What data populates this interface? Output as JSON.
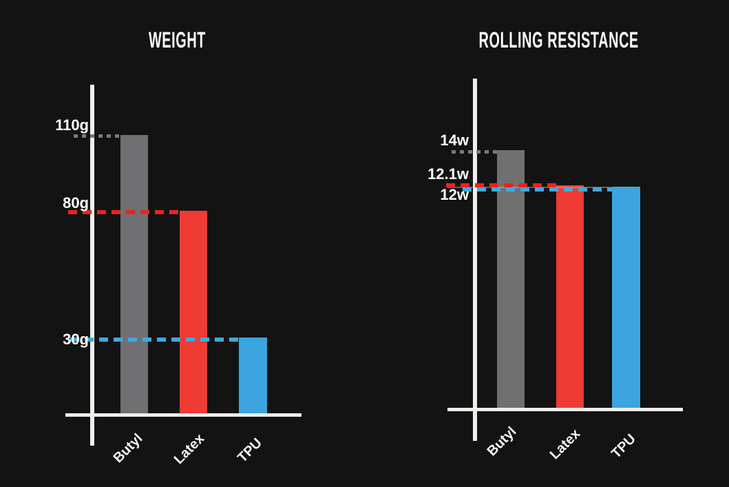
{
  "colors": {
    "background": "#131313",
    "axis": "#efeee9",
    "label_text": "#ffffff"
  },
  "chart_data": [
    {
      "type": "bar",
      "title": "WEIGHT",
      "categories": [
        "Butyl",
        "Latex",
        "TPU"
      ],
      "values": [
        110,
        80,
        30
      ],
      "unit": "g",
      "value_labels": [
        "110g",
        "80g",
        "30g"
      ],
      "bar_colors": [
        "#707073",
        "#ee3b33",
        "#3ca4de"
      ],
      "guide_colors": [
        "#7a7a7d",
        "#e8251d",
        "#3fa9e1"
      ],
      "guide_styles": [
        "dotted",
        "dashed",
        "dashed"
      ],
      "xlabel": "",
      "ylabel": "",
      "ylim": [
        0,
        120
      ],
      "grid": false,
      "legend": false
    },
    {
      "type": "bar",
      "title": "ROLLING RESISTANCE",
      "categories": [
        "Butyl",
        "Latex",
        "TPU"
      ],
      "values": [
        14,
        12.1,
        12
      ],
      "unit": "w",
      "value_labels": [
        "14w",
        "12.1w",
        "12w"
      ],
      "bar_colors": [
        "#707073",
        "#ee3b33",
        "#3ca4de"
      ],
      "guide_colors": [
        "#7a7a7d",
        "#e8251d",
        "#3fa9e1"
      ],
      "guide_styles": [
        "dotted",
        "dashed",
        "dashed"
      ],
      "xlabel": "",
      "ylabel": "",
      "ylim": [
        0,
        16
      ],
      "grid": false,
      "legend": false
    }
  ]
}
